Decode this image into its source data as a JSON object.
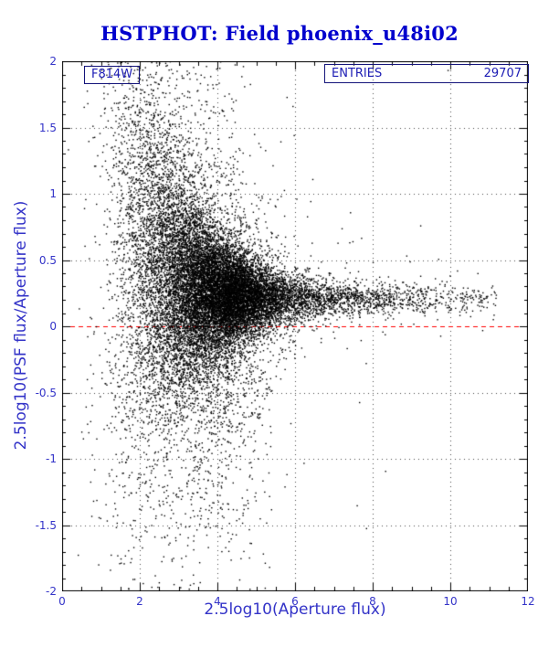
{
  "title": "HSTPHOT: Field phoenix_u48i02",
  "title_color": "#0000cd",
  "entries_box": {
    "label": "ENTRIES",
    "value": "29707"
  },
  "chart_data": {
    "type": "scatter",
    "title": "HSTPHOT: Field phoenix_u48i02",
    "xlabel": "2.5log10(Aperture flux)",
    "ylabel": "2.5log10(PSF flux/Aperture flux)",
    "series_label": "F814W",
    "entries": 29707,
    "xlim": [
      0,
      12
    ],
    "ylim": [
      -2,
      2
    ],
    "xticks": [
      0,
      2,
      4,
      6,
      8,
      10,
      12
    ],
    "yticks": [
      -2,
      -1.5,
      -1,
      -0.5,
      0,
      0.5,
      1,
      1.5,
      2
    ],
    "grid": true,
    "grid_style": "dotted",
    "legend_position": "none",
    "point_color": "#000000",
    "reference_line": {
      "y": 0,
      "color": "#ff0000",
      "style": "dashed"
    },
    "n_points_rendered": 20000,
    "distribution": {
      "description": "Funnel-shaped residual plot: broad vertical scatter (y from -2 to 2) at low aperture flux (x 1-3), a very dense clump near x 3-5 centered about y 0.1-0.25, converging to a tight horizontal band at y approx 0.2 extending to x approx 11; sparse downward plume below the clump and a red dashed zero line.",
      "seed": 20907,
      "converge_y": 0.2,
      "components": [
        {
          "name": "core-clump",
          "weight": 0.6,
          "x_mean": 3.9,
          "x_sd": 0.8
        },
        {
          "name": "bright-band",
          "weight": 0.2,
          "x_start": 4.2,
          "x_exp_scale": 2.0,
          "x_max": 11.2
        },
        {
          "name": "faint-left-cloud",
          "weight": 0.2,
          "x_mean": 2.5,
          "x_sd": 0.75,
          "x_min": 0.15,
          "mu_boost": 0.25
        }
      ],
      "mu_base": 0.2,
      "mu_amp": 0.35,
      "mu_scale": 1.7,
      "sigma_base": 0.05,
      "sigma_amp": 3.5,
      "sigma_scale": 1.35,
      "outlier_frac": 0.12,
      "outlier_mult": 3.0,
      "halo_frac": 0.012,
      "downward_plume_frac": 0.08,
      "downward_plume_scale": 0.55
    }
  }
}
